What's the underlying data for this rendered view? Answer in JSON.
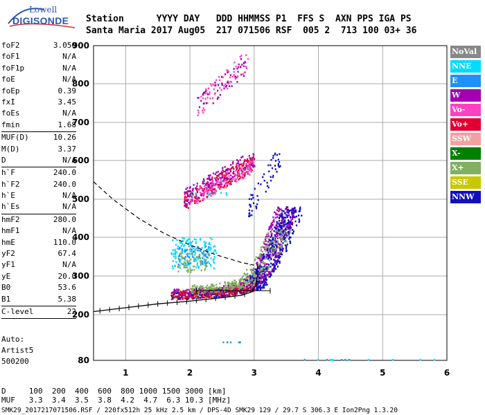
{
  "logo": {
    "line1": "Lowell",
    "line2": "DIGISONDE"
  },
  "header": {
    "row1": "Station      YYYY DAY   DDD HHMMSS P1  FFS S  AXN PPS IGA PS",
    "row2": "Santa Maria 2017 Aug05  217 071506 RSF  005 2  713 100 03+ 36"
  },
  "params": {
    "group1": [
      {
        "name": "foF2",
        "value": "3.050"
      },
      {
        "name": "foF1",
        "value": "N/A"
      },
      {
        "name": "foF1p",
        "value": "N/A"
      },
      {
        "name": "foE",
        "value": "N/A"
      },
      {
        "name": "foEp",
        "value": "0.39"
      },
      {
        "name": "fxI",
        "value": "3.45"
      },
      {
        "name": "foEs",
        "value": "N/A"
      },
      {
        "name": "fmin",
        "value": "1.68"
      }
    ],
    "group2": [
      {
        "name": "MUF(D)",
        "value": "10.26"
      },
      {
        "name": "M(D)",
        "value": "3.37"
      },
      {
        "name": "D",
        "value": "N/A"
      }
    ],
    "group3": [
      {
        "name": "h`F",
        "value": "240.0"
      },
      {
        "name": "h`F2",
        "value": "240.0"
      },
      {
        "name": "h`E",
        "value": "N/A"
      },
      {
        "name": "h`Es",
        "value": "N/A"
      }
    ],
    "group4": [
      {
        "name": "hmF2",
        "value": "280.0"
      },
      {
        "name": "hmF1",
        "value": "N/A"
      },
      {
        "name": "hmE",
        "value": "110.0"
      },
      {
        "name": "yF2",
        "value": "67.4"
      },
      {
        "name": "yF1",
        "value": "N/A"
      },
      {
        "name": "yE",
        "value": "20.0"
      },
      {
        "name": "B0",
        "value": "53.6"
      },
      {
        "name": "B1",
        "value": "5.38"
      }
    ],
    "group5": [
      {
        "name": "C-level",
        "value": "22"
      }
    ]
  },
  "extra": {
    "auto": "Auto:",
    "artist": "Artist5",
    "version": "500200"
  },
  "legend": [
    {
      "label": "NoVal",
      "bg": "#888888",
      "fg": "#ffffff"
    },
    {
      "label": "NNE",
      "bg": "#00dcff",
      "fg": "#ffffff"
    },
    {
      "label": "E",
      "bg": "#1e90ff",
      "fg": "#ffffff"
    },
    {
      "label": "W",
      "bg": "#a000b0",
      "fg": "#ffffff"
    },
    {
      "label": "Vo-",
      "bg": "#ff40c0",
      "fg": "#ffffff"
    },
    {
      "label": "Vo+",
      "bg": "#e00030",
      "fg": "#ffffff"
    },
    {
      "label": "SSW",
      "bg": "#f4a0a0",
      "fg": "#ffffff"
    },
    {
      "label": "X-",
      "bg": "#008000",
      "fg": "#ffffff"
    },
    {
      "label": "X+",
      "bg": "#80b060",
      "fg": "#ffffff"
    },
    {
      "label": "SSE",
      "bg": "#c8c800",
      "fg": "#ffffff"
    },
    {
      "label": "NNW",
      "bg": "#1010c0",
      "fg": "#ffffff"
    }
  ],
  "footer": {
    "line1": "D     100  200  400  600  800 1000 1500 3000 [km]",
    "line2": "MUF   3.3  3.4  3.5  3.8  4.2  4.7  6.3 10.3 [MHz]",
    "line3": "SMK29_2017217071506.RSF / 220fx512h 25 kHz 2.5 km / DPS-4D SMK29 129 / 29.7 S 306.3 E Ion2Png 1.3.20"
  },
  "chart_data": {
    "type": "scatter",
    "title": "",
    "xlabel": "",
    "ylabel": "",
    "xlim": [
      0.5,
      6.0
    ],
    "ylim": [
      80,
      900
    ],
    "x_ticks": [
      1,
      2,
      3,
      4,
      5,
      6
    ],
    "y_ticks": [
      80,
      200,
      300,
      400,
      500,
      600,
      700,
      800,
      900
    ],
    "grid": true,
    "legend_placement": "right",
    "clusters": [
      {
        "mode": "SSE",
        "color": "#c8c800",
        "region": "F trace",
        "x": [
          1.7,
          3.1
        ],
        "y": [
          240,
          275
        ],
        "n": 160
      },
      {
        "mode": "NNW",
        "color": "#1010c0",
        "region": "F trace",
        "x": [
          1.7,
          3.2
        ],
        "y": [
          240,
          270
        ],
        "n": 260
      },
      {
        "mode": "W",
        "color": "#a000b0",
        "region": "F trace",
        "x": [
          1.7,
          3.2
        ],
        "y": [
          245,
          285
        ],
        "n": 220
      },
      {
        "mode": "Vo+",
        "color": "#e00030",
        "region": "F trace",
        "x": [
          1.7,
          3.0
        ],
        "y": [
          240,
          262
        ],
        "n": 160
      },
      {
        "mode": "X+",
        "color": "#80b060",
        "region": "F trace",
        "x": [
          2.0,
          3.2
        ],
        "y": [
          255,
          300
        ],
        "n": 170
      },
      {
        "mode": "W",
        "color": "#a000b0",
        "region": "cusp",
        "x": [
          2.9,
          3.5
        ],
        "y": [
          280,
          480
        ],
        "n": 340
      },
      {
        "mode": "NNW",
        "color": "#1010c0",
        "region": "cusp",
        "x": [
          2.9,
          3.6
        ],
        "y": [
          280,
          480
        ],
        "n": 300
      },
      {
        "mode": "X+",
        "color": "#80b060",
        "region": "cusp",
        "x": [
          2.7,
          3.4
        ],
        "y": [
          270,
          420
        ],
        "n": 140
      },
      {
        "mode": "NNE",
        "color": "#00dcff",
        "region": "oblique",
        "x": [
          1.7,
          2.4
        ],
        "y": [
          320,
          400
        ],
        "n": 160
      },
      {
        "mode": "E",
        "color": "#1e90ff",
        "region": "oblique",
        "x": [
          1.8,
          2.3
        ],
        "y": [
          330,
          380
        ],
        "n": 60
      },
      {
        "mode": "X+",
        "color": "#80b060",
        "region": "oblique",
        "x": [
          1.8,
          2.3
        ],
        "y": [
          310,
          360
        ],
        "n": 60
      },
      {
        "mode": "Vo+",
        "color": "#e00030",
        "region": "2nd hop",
        "x": [
          1.9,
          3.0
        ],
        "y": [
          470,
          600
        ],
        "n": 220
      },
      {
        "mode": "W",
        "color": "#a000b0",
        "region": "2nd hop",
        "x": [
          1.9,
          3.0
        ],
        "y": [
          480,
          610
        ],
        "n": 180
      },
      {
        "mode": "Vo-",
        "color": "#ff40c0",
        "region": "2nd hop",
        "x": [
          2.0,
          3.0
        ],
        "y": [
          480,
          590
        ],
        "n": 120
      },
      {
        "mode": "NNW",
        "color": "#1010c0",
        "region": "2nd hop",
        "x": [
          2.9,
          3.4
        ],
        "y": [
          440,
          620
        ],
        "n": 60
      },
      {
        "mode": "Vo-",
        "color": "#ff40c0",
        "region": "3rd hop",
        "x": [
          2.1,
          2.9
        ],
        "y": [
          710,
          870
        ],
        "n": 70
      },
      {
        "mode": "W",
        "color": "#a000b0",
        "region": "3rd hop",
        "x": [
          2.1,
          2.9
        ],
        "y": [
          710,
          860
        ],
        "n": 50
      },
      {
        "mode": "NNE",
        "color": "#00dcff",
        "region": "noise",
        "x": [
          3.6,
          6.0
        ],
        "y": [
          80,
          82
        ],
        "n": 90
      },
      {
        "mode": "E",
        "color": "#1e90ff",
        "region": "noise",
        "x": [
          3.6,
          6.0
        ],
        "y": [
          80,
          82
        ],
        "n": 90
      },
      {
        "mode": "SSE",
        "color": "#c8c800",
        "region": "noise",
        "x": [
          4.8,
          5.6
        ],
        "y": [
          80,
          82
        ],
        "n": 30
      },
      {
        "mode": "E",
        "color": "#1e90ff",
        "region": "noise",
        "x": [
          2.5,
          2.8
        ],
        "y": [
          128,
          128
        ],
        "n": 8
      },
      {
        "mode": "NNE",
        "color": "#00dcff",
        "region": "noise",
        "x": [
          2.0,
          2.6
        ],
        "y": [
          510,
          520
        ],
        "n": 10
      }
    ],
    "profile_solid": [
      [
        0.5,
        208
      ],
      [
        1.0,
        218
      ],
      [
        1.5,
        228
      ],
      [
        2.0,
        235
      ],
      [
        2.5,
        244
      ],
      [
        2.8,
        250
      ],
      [
        2.95,
        258
      ],
      [
        3.03,
        275
      ],
      [
        3.05,
        300
      ],
      [
        3.05,
        330
      ]
    ],
    "profile_dashed": [
      [
        0.5,
        545
      ],
      [
        0.8,
        500
      ],
      [
        1.2,
        450
      ],
      [
        1.6,
        410
      ],
      [
        2.0,
        380
      ],
      [
        2.4,
        355
      ],
      [
        2.8,
        335
      ],
      [
        3.0,
        328
      ]
    ],
    "bracket": {
      "x": [
        2.1,
        3.25
      ],
      "y": 262
    }
  }
}
